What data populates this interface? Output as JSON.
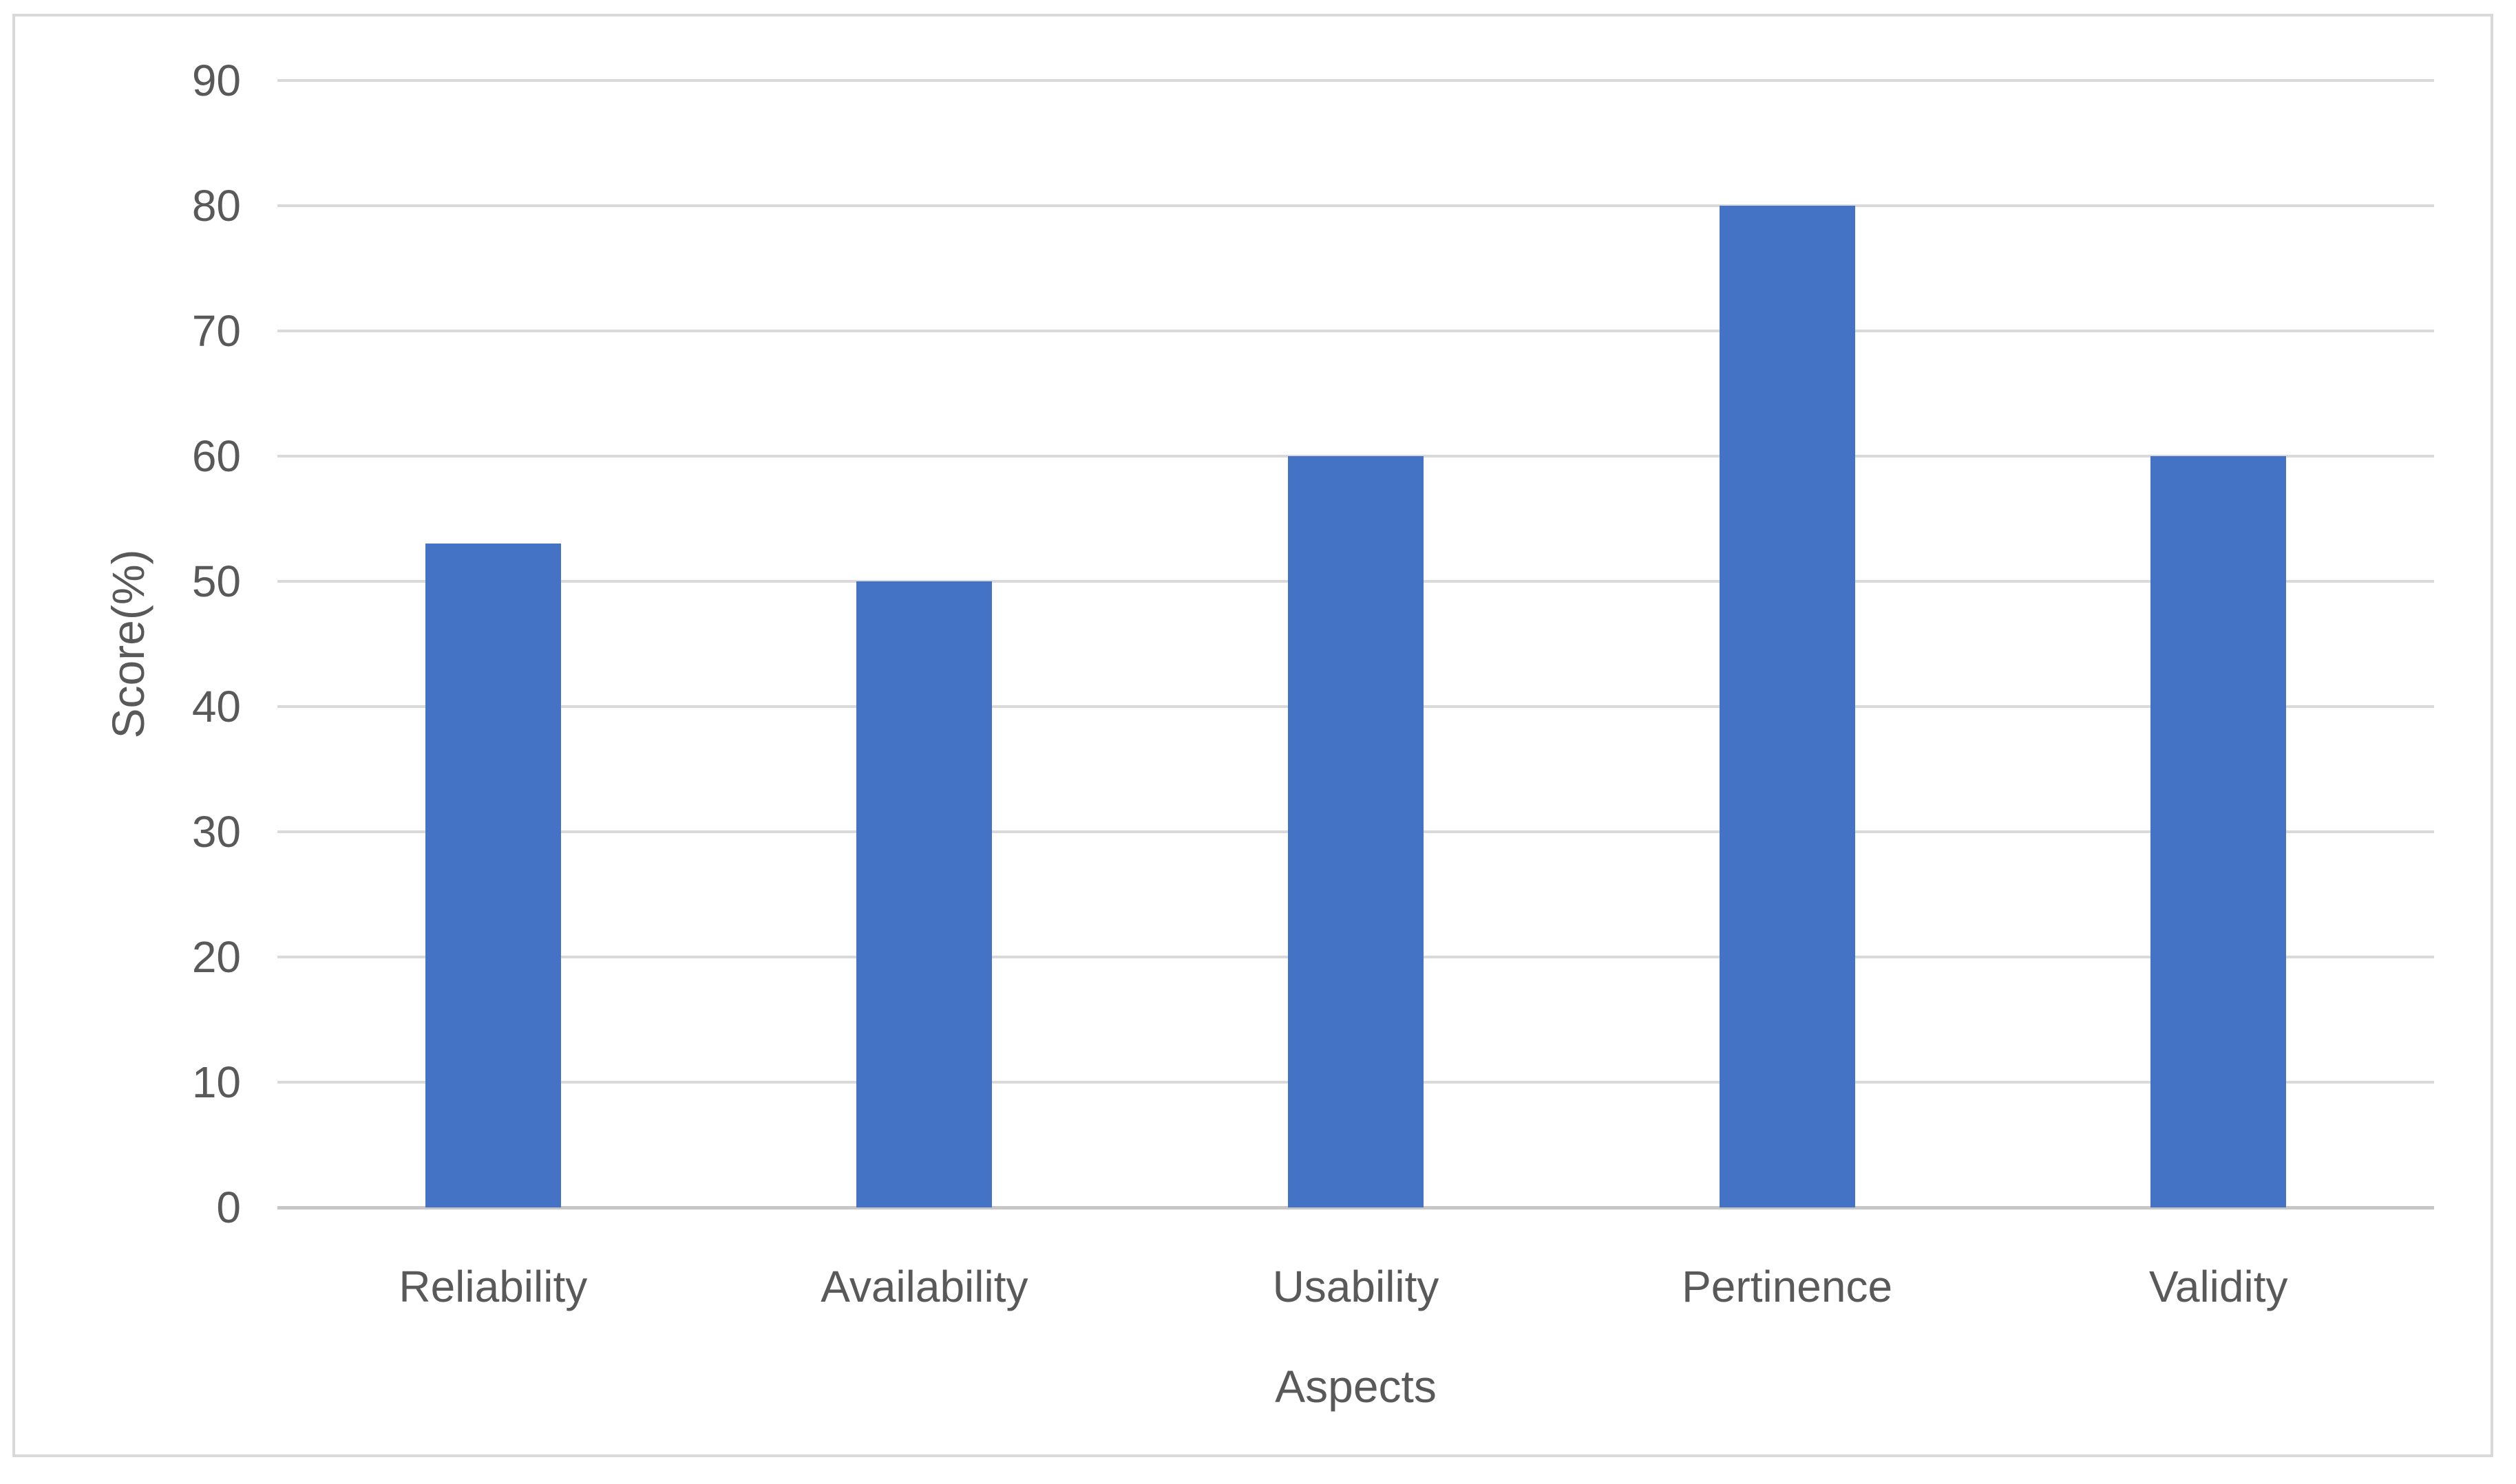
{
  "chart_data": {
    "type": "bar",
    "title": "",
    "categories": [
      "Reliability",
      "Availability",
      "Usability",
      "Pertinence",
      "Validity"
    ],
    "values": [
      53,
      50,
      60,
      80,
      60
    ],
    "series_name": "Score",
    "xlabel": "Aspects",
    "ylabel": "Score(%)",
    "ylim": [
      0,
      90
    ],
    "ytick_step": 10,
    "yticks": [
      0,
      10,
      20,
      30,
      40,
      50,
      60,
      70,
      80,
      90
    ],
    "grid": true,
    "legend": "none",
    "bar_color": "#4472C4",
    "gridline_color": "#D9D9D9",
    "axis_line_color": "#C6C6C6",
    "text_color": "#595959",
    "frame_border_color": "#D9D9D9",
    "background_color": "#FFFFFF"
  }
}
